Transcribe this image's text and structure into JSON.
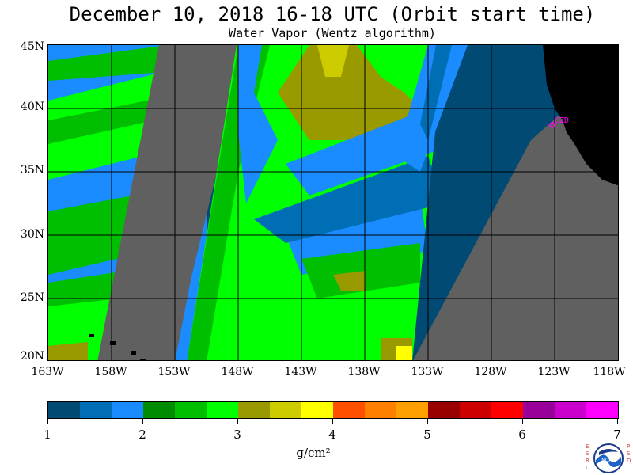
{
  "title": "December 10, 2018  16-18 UTC  (Orbit start time)",
  "subtitle": "Water Vapor (Wentz algorithm)",
  "station_label": "CZD",
  "lat_labels": [
    "45N",
    "40N",
    "35N",
    "30N",
    "25N",
    "20N"
  ],
  "lon_labels": [
    "163W",
    "158W",
    "153W",
    "148W",
    "143W",
    "138W",
    "133W",
    "128W",
    "123W",
    "118W"
  ],
  "colorbar": {
    "ticks": [
      "1",
      "2",
      "3",
      "4",
      "5",
      "6",
      "7"
    ],
    "units": "g/cm²",
    "colors": [
      "#004a73",
      "#006eb4",
      "#1a8cff",
      "#008c00",
      "#00bf00",
      "#00ff00",
      "#999900",
      "#cccc00",
      "#ffff00",
      "#ff5000",
      "#ff7f00",
      "#ff9f00",
      "#990000",
      "#cc0000",
      "#ff0000",
      "#990099",
      "#cc00cc",
      "#ff00ff"
    ]
  },
  "logo": {
    "left": [
      "E",
      "S",
      "R",
      "L"
    ],
    "right": [
      "P",
      "S",
      "D"
    ],
    "name": "NOAA"
  }
}
